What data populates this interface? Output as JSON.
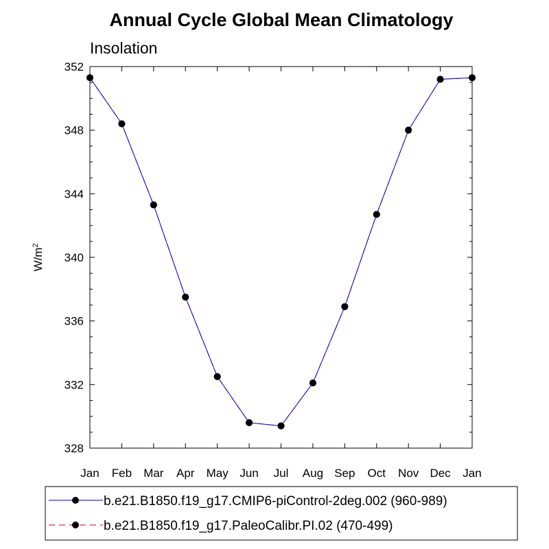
{
  "chart_data": {
    "type": "line",
    "title": "Annual Cycle Global Mean Climatology",
    "subtitle": "Insolation",
    "xlabel": "",
    "ylabel_base": "W/m",
    "ylabel_superscript": "2",
    "categories": [
      "Jan",
      "Feb",
      "Mar",
      "Apr",
      "May",
      "Jun",
      "Jul",
      "Aug",
      "Sep",
      "Oct",
      "Nov",
      "Dec",
      "Jan"
    ],
    "ylim": [
      328,
      352
    ],
    "yticks": [
      328,
      332,
      336,
      340,
      344,
      348,
      352
    ],
    "grid": false,
    "legend_position": "bottom",
    "series": [
      {
        "name": "b.e21.B1850.f19_g17.CMIP6-piControl-2deg.002 (960-989)",
        "color": "#0000cc",
        "marker_color": "#000000",
        "dash": "solid",
        "values": [
          351.3,
          348.4,
          343.3,
          337.5,
          332.5,
          329.6,
          329.4,
          332.1,
          336.9,
          342.7,
          348.0,
          351.2,
          351.3
        ]
      },
      {
        "name": "b.e21.B1850.f19_g17.PaleoCalibr.PI.02 (470-499)",
        "color": "#cc0000",
        "marker_color": "#000000",
        "dash": "dashed",
        "values": [
          351.3,
          348.4,
          343.3,
          337.5,
          332.5,
          329.6,
          329.4,
          332.1,
          336.9,
          342.7,
          348.0,
          351.2,
          351.3
        ]
      }
    ]
  }
}
